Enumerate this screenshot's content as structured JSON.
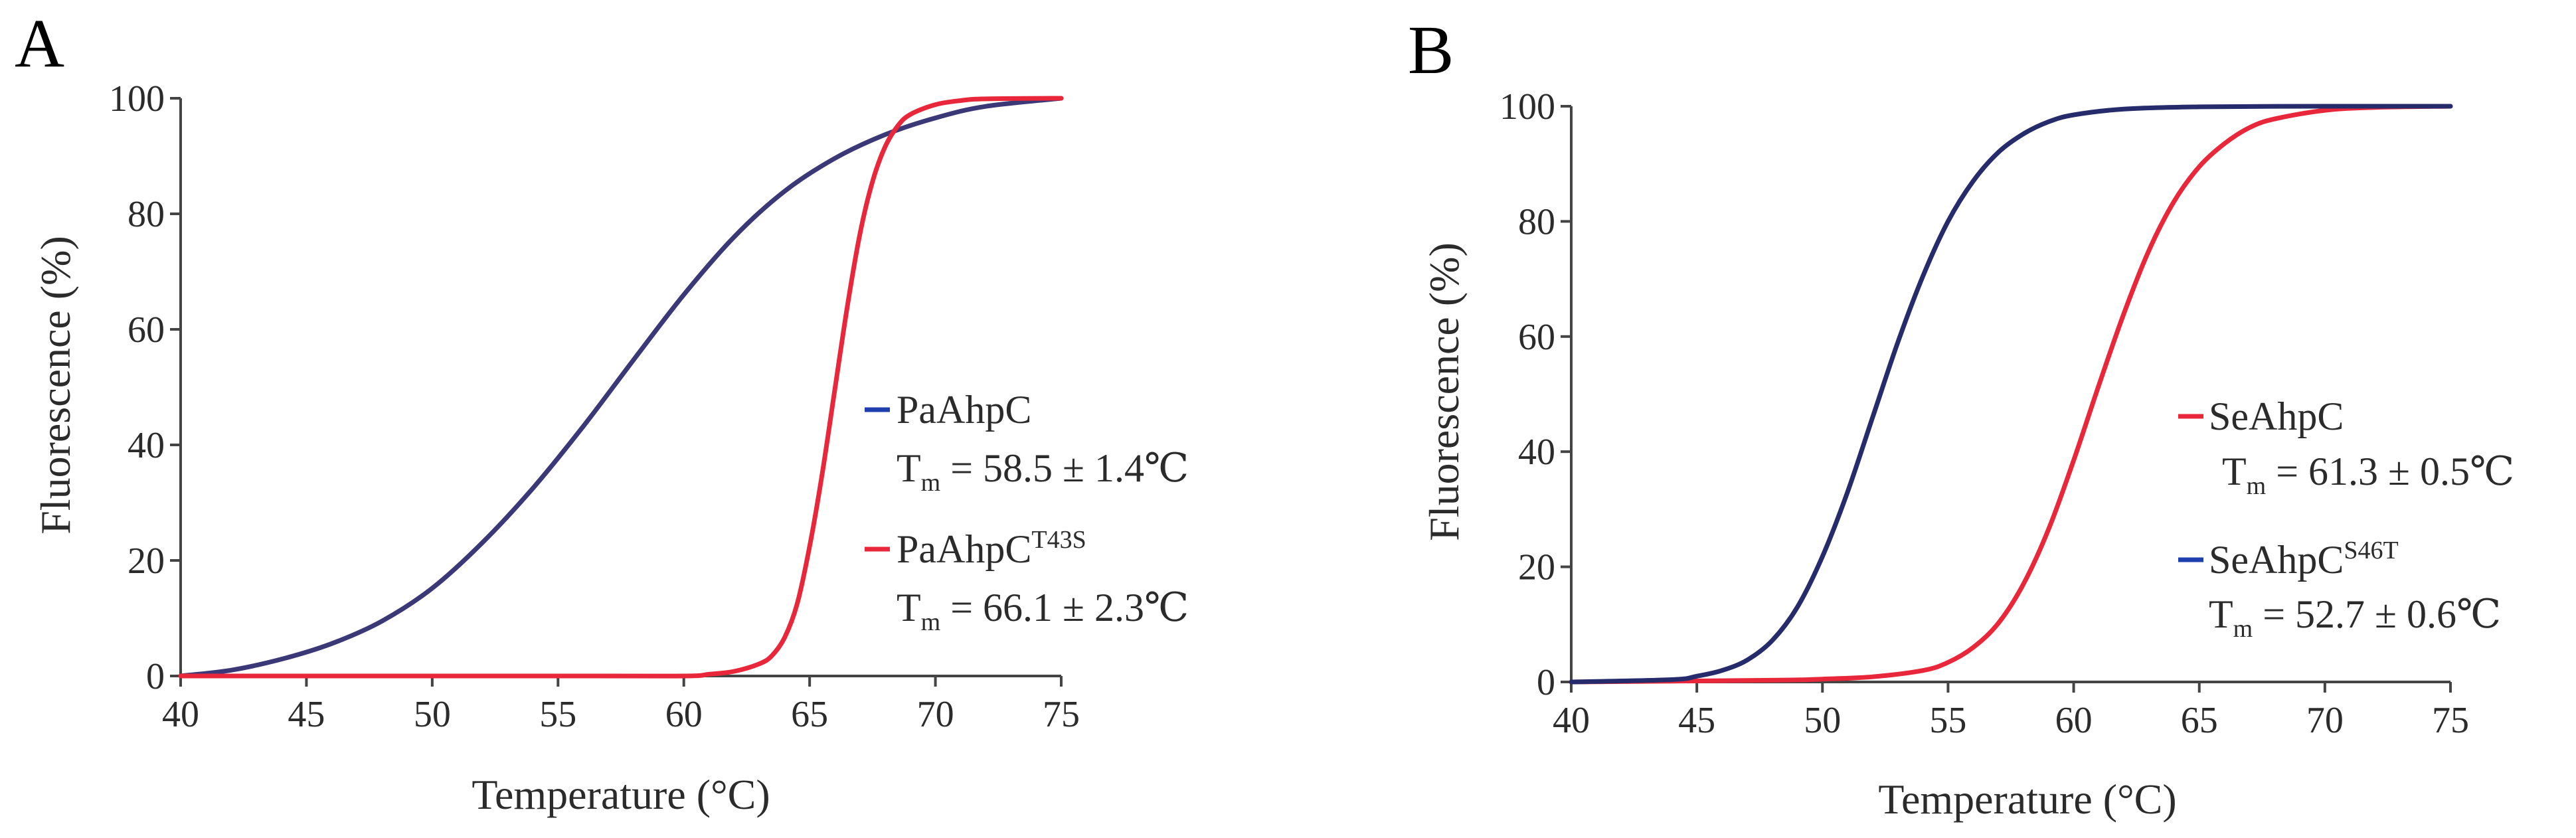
{
  "chart_data": [
    {
      "panel": "A",
      "type": "line",
      "xlabel": "Temperature (°C)",
      "ylabel": "Fluorescence (%)",
      "xlim": [
        40,
        75
      ],
      "ylim": [
        0,
        100
      ],
      "xticks": [
        40,
        45,
        50,
        55,
        60,
        65,
        70,
        75
      ],
      "yticks": [
        0,
        20,
        40,
        60,
        80,
        100
      ],
      "series": [
        {
          "name": "PaAhpC",
          "sup": "",
          "color": "#3a3876",
          "legend_color": "#1f3fae",
          "tm_label": "T",
          "tm_sub": "m",
          "tm_text": " = 58.5 ± 1.4℃",
          "x": [
            40,
            42,
            44,
            46,
            48,
            50,
            52,
            54,
            56,
            58,
            60,
            62,
            64,
            66,
            68,
            70,
            72,
            75
          ],
          "values": [
            0.0,
            1.0,
            2.9,
            5.6,
            9.5,
            15.2,
            23.1,
            32.5,
            43.2,
            54.7,
            66.0,
            76.0,
            83.9,
            89.6,
            93.7,
            96.6,
            98.6,
            100.0
          ]
        },
        {
          "name": "PaAhpC",
          "sup": "T43S",
          "color": "#e8283a",
          "legend_color": "#e8283a",
          "tm_label": "T",
          "tm_sub": "m",
          "tm_text": " = 66.1 ± 2.3℃",
          "x": [
            40,
            55,
            60,
            61,
            62,
            63,
            63.5,
            64,
            64.5,
            65,
            65.5,
            66,
            66.5,
            67,
            67.5,
            68,
            68.5,
            69,
            70,
            71,
            72,
            75
          ],
          "values": [
            0,
            0,
            0,
            0.3,
            0.8,
            2.1,
            3.5,
            6.6,
            12.4,
            22.4,
            35.0,
            49.5,
            64.0,
            76.5,
            85.6,
            91.6,
            95.2,
            97.2,
            98.9,
            99.6,
            99.9,
            100
          ]
        }
      ]
    },
    {
      "panel": "B",
      "type": "line",
      "xlabel": "Temperature (°C)",
      "ylabel": "Fluorescence (%)",
      "xlim": [
        40,
        75
      ],
      "ylim": [
        0,
        100
      ],
      "xticks": [
        40,
        45,
        50,
        55,
        60,
        65,
        70,
        75
      ],
      "yticks": [
        0,
        20,
        40,
        60,
        80,
        100
      ],
      "series": [
        {
          "name": "SeAhpC",
          "sup": "",
          "color": "#e8283a",
          "legend_color": "#e8283a",
          "tm_label": "T",
          "tm_sub": "m",
          "tm_text": " = 61.3 ± 0.5℃",
          "x": [
            40,
            48,
            50,
            52,
            54,
            55,
            56,
            57,
            58,
            59,
            60,
            61,
            62,
            63,
            64,
            65,
            66,
            67,
            68,
            70,
            72,
            75
          ],
          "values": [
            0,
            0.3,
            0.5,
            0.9,
            2.0,
            3.4,
            6.0,
            10.2,
            17.0,
            26.5,
            38.5,
            51.5,
            64.0,
            75.0,
            83.5,
            89.5,
            93.5,
            96.3,
            97.8,
            99.3,
            99.8,
            100
          ]
        },
        {
          "name": "SeAhpC",
          "sup": "S46T",
          "color": "#252b6b",
          "legend_color": "#1f3fae",
          "tm_label": "T",
          "tm_sub": "m",
          "tm_text": " = 52.7 ± 0.6℃",
          "x": [
            40,
            44,
            45,
            46,
            47,
            48,
            49,
            50,
            51,
            52,
            53,
            54,
            55,
            56,
            57,
            58,
            59,
            60,
            62,
            65,
            70,
            75
          ],
          "values": [
            0,
            0.4,
            1.0,
            2.0,
            3.8,
            7.2,
            13.0,
            21.8,
            33.0,
            46.0,
            59.0,
            70.5,
            80.0,
            87.0,
            92.0,
            95.2,
            97.3,
            98.5,
            99.5,
            99.9,
            100,
            100
          ]
        }
      ]
    }
  ]
}
